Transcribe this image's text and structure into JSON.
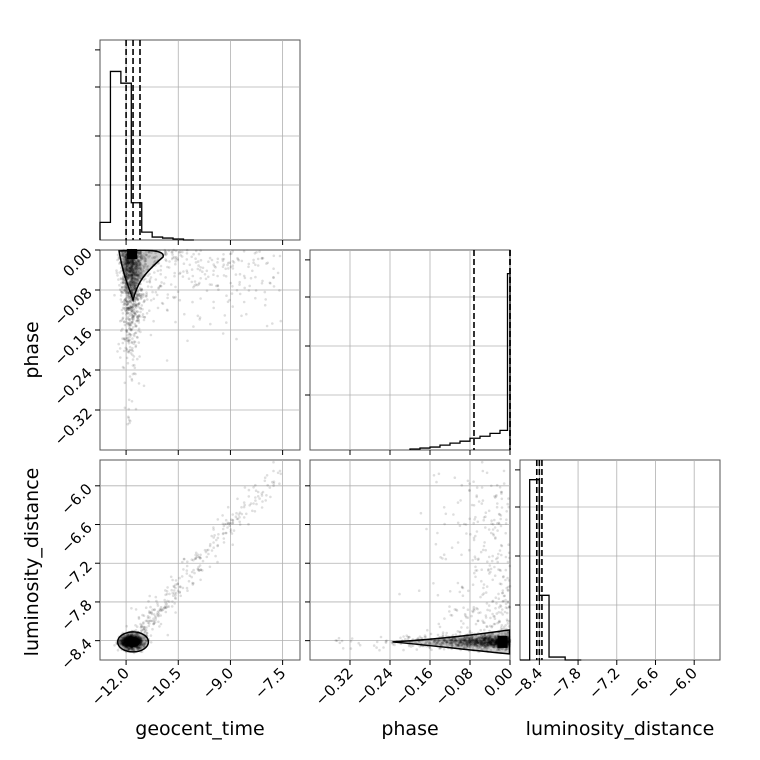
{
  "chart_data": {
    "type": "corner",
    "parameters": [
      "geocent_time",
      "phase",
      "luminosity_distance"
    ],
    "axes": {
      "geocent_time": {
        "label": "geocent_time",
        "range": [
          -12.75,
          -7.0
        ],
        "ticks": [
          -12.0,
          -10.5,
          -9.0,
          -7.5
        ],
        "tick_labels": [
          "−12.0",
          "−10.5",
          "−9.0",
          "−7.5"
        ]
      },
      "phase": {
        "label": "phase",
        "range": [
          -0.4,
          0.0
        ],
        "ticks": [
          -0.32,
          -0.24,
          -0.16,
          -0.08,
          0.0
        ],
        "tick_labels": [
          "−0.32",
          "−0.24",
          "−0.16",
          "−0.08",
          "0.00"
        ]
      },
      "luminosity_distance": {
        "label": "luminosity_distance",
        "range": [
          -8.7,
          -5.6
        ],
        "ticks": [
          -8.4,
          -7.8,
          -7.2,
          -6.6,
          -6.0
        ],
        "tick_labels": [
          "−8.4",
          "−7.8",
          "−7.2",
          "−6.6",
          "−6.0"
        ]
      }
    },
    "histograms": {
      "geocent_time": {
        "bin_edges": [
          -12.75,
          -12.45,
          -12.15,
          -11.85,
          -11.55,
          -11.25,
          -10.95,
          -10.65,
          -10.35,
          -10.05
        ],
        "counts": [
          0.09,
          0.86,
          0.8,
          0.19,
          0.04,
          0.015,
          0.01,
          0.005,
          0.0
        ],
        "quantiles": [
          -12.0,
          -11.8,
          -11.6
        ]
      },
      "phase": {
        "bin_edges": [
          -0.2,
          -0.18,
          -0.16,
          -0.14,
          -0.12,
          -0.1,
          -0.08,
          -0.06,
          -0.04,
          -0.02,
          -0.005,
          0.0
        ],
        "counts": [
          0.005,
          0.01,
          0.015,
          0.025,
          0.035,
          0.045,
          0.06,
          0.07,
          0.085,
          0.1,
          0.9
        ],
        "quantiles": [
          -0.072,
          0.0,
          0.0
        ]
      },
      "luminosity_distance": {
        "bin_edges": [
          -8.7,
          -8.55,
          -8.4,
          -8.25,
          -8.0,
          -7.75
        ],
        "counts": [
          0.0,
          0.92,
          0.33,
          0.015,
          0.0
        ],
        "quantiles": [
          -8.44,
          -8.4,
          -8.36
        ]
      }
    },
    "grid": true
  }
}
